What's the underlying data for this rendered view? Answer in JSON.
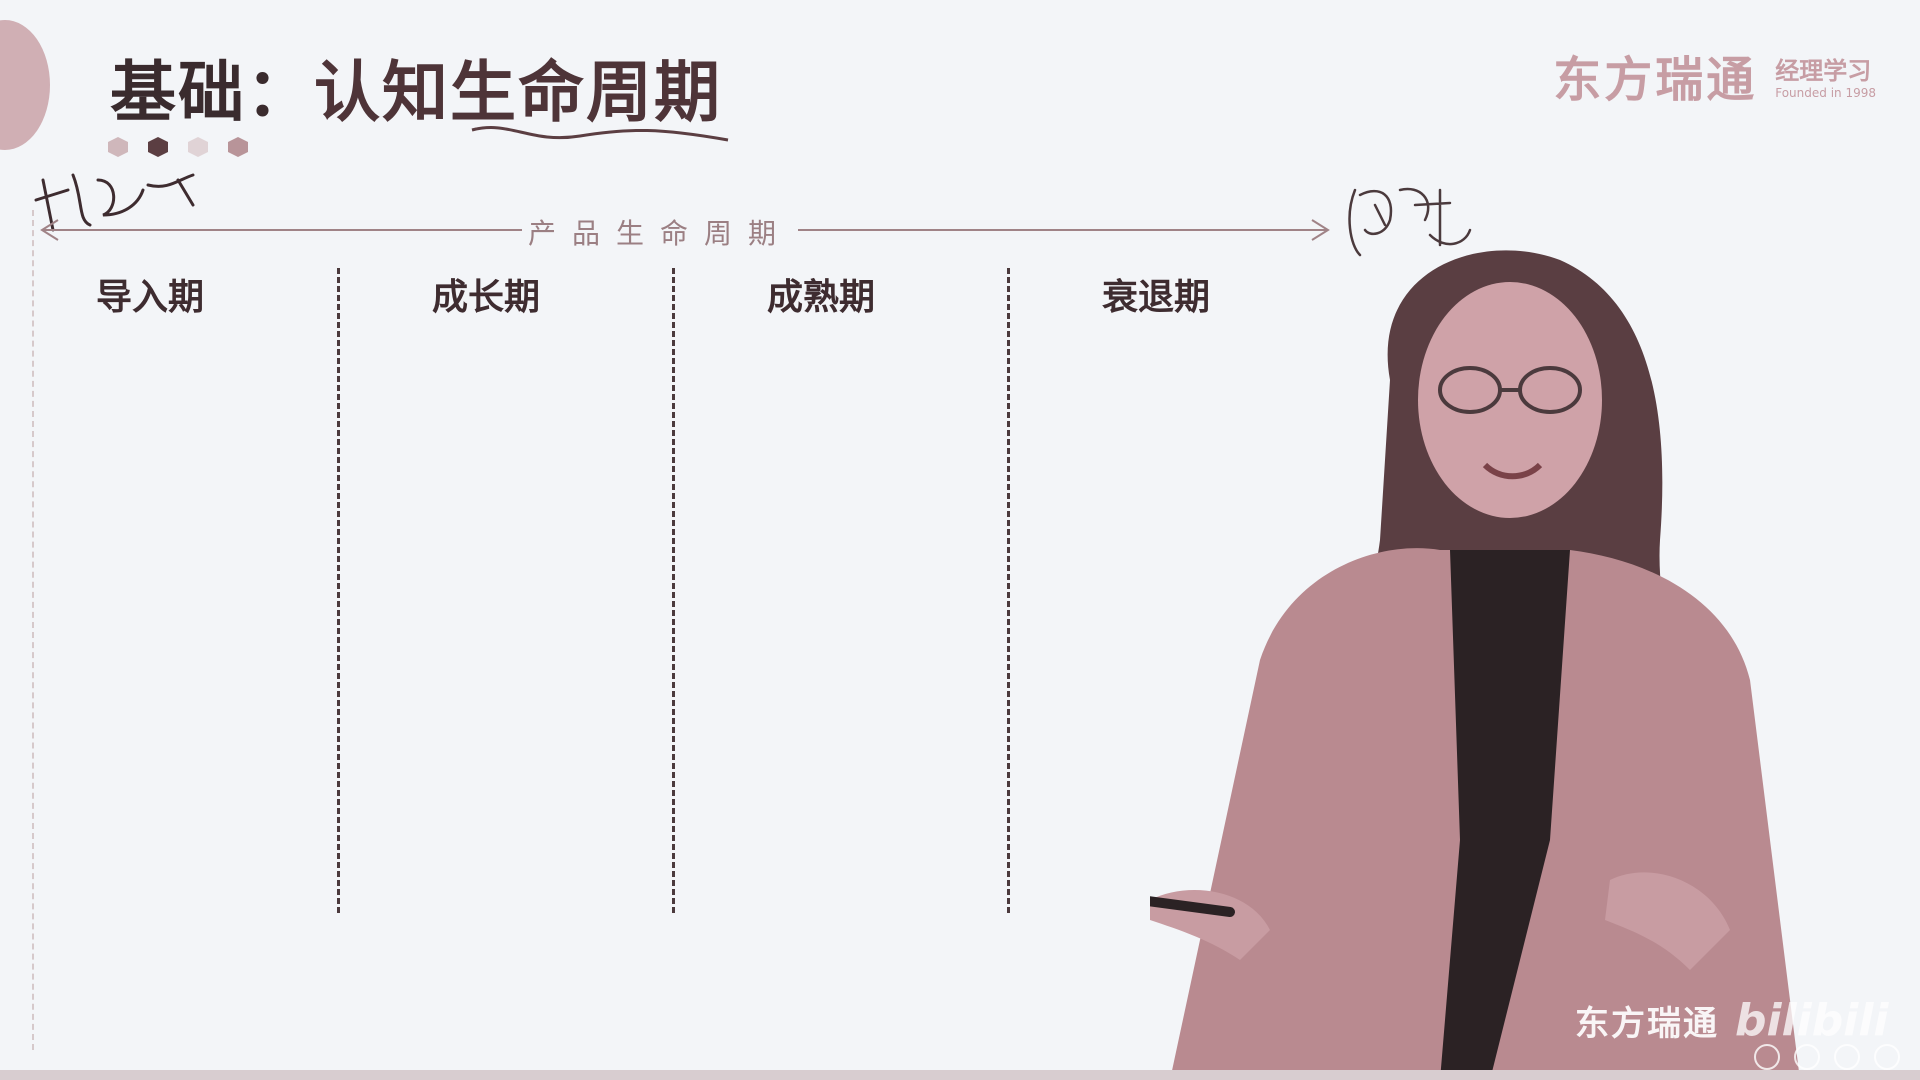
{
  "slide": {
    "title_prefix": "基础：",
    "title_main": "认知生命周期",
    "axis_label": "产品生命周期",
    "stages": [
      "导入期",
      "成长期",
      "成熟期",
      "衰退期"
    ]
  },
  "brand": {
    "name": "东方瑞通",
    "sub": "经理学习",
    "year": "Founded in 1998"
  },
  "watermark": {
    "text": "东方瑞通",
    "logo": "bilibili"
  },
  "colors": {
    "title": "#4e3438",
    "accent": "#c79da4",
    "stage_text": "#3e2c30",
    "dashes": "#4b3a3d",
    "background": "#f3f5f8"
  },
  "icons": [
    "handwritten-note-left",
    "handwritten-note-right",
    "presenter-figure",
    "hexagon-dots"
  ]
}
